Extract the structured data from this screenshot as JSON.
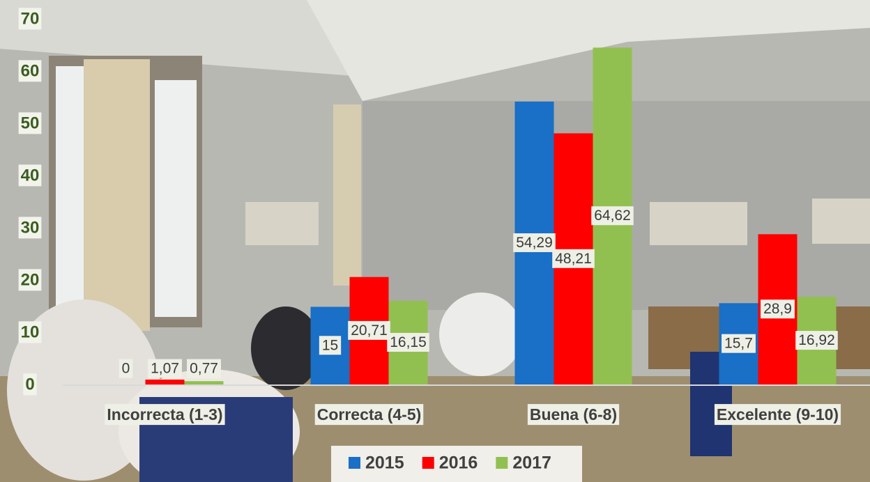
{
  "chart_data": {
    "type": "bar",
    "categories": [
      "Incorrecta (1-3)",
      "Correcta (4-5)",
      "Buena (6-8)",
      "Excelente (9-10)"
    ],
    "series": [
      {
        "name": "2015",
        "color": "#1a6fc6",
        "values": [
          0,
          15,
          54.29,
          15.7
        ],
        "value_labels": [
          "0",
          "15",
          "54,29",
          "15,7"
        ]
      },
      {
        "name": "2016",
        "color": "#ff0000",
        "values": [
          1.07,
          20.71,
          48.21,
          28.9
        ],
        "value_labels": [
          "1,07",
          "20,71",
          "48,21",
          "28,9"
        ]
      },
      {
        "name": "2017",
        "color": "#92c050",
        "values": [
          0.77,
          16.15,
          64.62,
          16.92
        ],
        "value_labels": [
          "0,77",
          "16,15",
          "64,62",
          "16,92"
        ]
      }
    ],
    "ylim": [
      0,
      70
    ],
    "yticks": [
      0,
      10,
      20,
      30,
      40,
      50,
      60,
      70
    ],
    "legend": "bottom"
  }
}
